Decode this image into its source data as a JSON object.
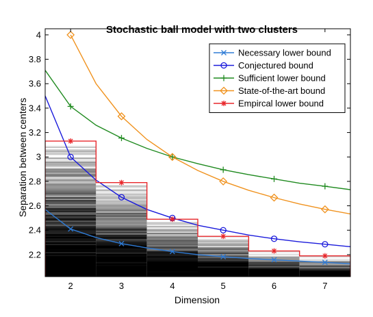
{
  "chart_data": {
    "type": "line",
    "title": "Stochastic ball model with two clusters",
    "xlabel": "Dimension",
    "ylabel": "Separation between centers",
    "xlim": [
      1.5,
      7.5
    ],
    "ylim": [
      2.02,
      4.05
    ],
    "xticks": [
      2,
      3,
      4,
      5,
      6,
      7
    ],
    "yticks": [
      2.2,
      2.4,
      2.6,
      2.8,
      3,
      3.2,
      3.4,
      3.6,
      3.8,
      4
    ],
    "ytick_labels": [
      "2.2",
      "2.4",
      "2.6",
      "2.8",
      "3",
      "3.2",
      "3.4",
      "3.6",
      "3.8",
      "4"
    ],
    "grid": false,
    "legend_position": "top-right",
    "series": [
      {
        "name": "Necessary lower bound",
        "color": "#2e7bd6",
        "marker": "x",
        "curve_x": [
          1.5,
          2,
          2.5,
          3,
          3.5,
          4,
          4.5,
          5,
          5.5,
          6,
          6.5,
          7,
          7.5
        ],
        "curve_y": [
          2.57,
          2.41,
          2.34,
          2.29,
          2.255,
          2.225,
          2.2,
          2.183,
          2.168,
          2.158,
          2.147,
          2.137,
          2.125
        ],
        "marker_x": [
          2,
          3,
          4,
          5,
          6,
          7
        ],
        "marker_y": [
          2.41,
          2.29,
          2.225,
          2.183,
          2.158,
          2.137
        ]
      },
      {
        "name": "Conjectured bound",
        "color": "#1a1adb",
        "marker": "o",
        "curve_x": [
          1.5,
          2,
          2.5,
          3,
          3.5,
          4,
          4.5,
          5,
          5.5,
          6,
          6.5,
          7,
          7.5
        ],
        "curve_y": [
          3.5,
          3.0,
          2.81,
          2.67,
          2.57,
          2.5,
          2.44,
          2.4,
          2.36,
          2.33,
          2.305,
          2.285,
          2.265
        ],
        "marker_x": [
          2,
          3,
          4,
          5,
          6,
          7
        ],
        "marker_y": [
          3.0,
          2.67,
          2.5,
          2.4,
          2.33,
          2.285
        ]
      },
      {
        "name": "Sufficient lower bound",
        "color": "#1f8a1f",
        "marker": "+",
        "curve_x": [
          1.5,
          2,
          2.5,
          3,
          3.5,
          4,
          4.5,
          5,
          5.5,
          6,
          6.5,
          7,
          7.5
        ],
        "curve_y": [
          3.71,
          3.414,
          3.26,
          3.155,
          3.07,
          3.0,
          2.945,
          2.895,
          2.855,
          2.82,
          2.785,
          2.76,
          2.732
        ],
        "marker_x": [
          2,
          3,
          4,
          5,
          6,
          7
        ],
        "marker_y": [
          3.414,
          3.155,
          3.0,
          2.895,
          2.82,
          2.76
        ]
      },
      {
        "name": "State-of-the-art bound",
        "color": "#f0921e",
        "marker": "diamond",
        "curve_x": [
          2,
          2.5,
          3,
          3.5,
          4,
          4.5,
          5,
          5.5,
          6,
          6.5,
          7,
          7.5
        ],
        "curve_y": [
          4.0,
          3.6,
          3.333,
          3.143,
          3.0,
          2.889,
          2.8,
          2.727,
          2.667,
          2.615,
          2.571,
          2.533
        ],
        "marker_x": [
          2,
          3,
          4,
          5,
          6,
          7
        ],
        "marker_y": [
          4.0,
          3.333,
          3.0,
          2.8,
          2.667,
          2.571
        ]
      },
      {
        "name": "Empircal lower bound",
        "color": "#e8262a",
        "marker": "*",
        "style": "step",
        "step_values": [
          3.13,
          2.79,
          2.49,
          2.35,
          2.23,
          2.19
        ],
        "marker_x": [
          2,
          3,
          4,
          5,
          6,
          7
        ],
        "marker_y": [
          3.13,
          2.79,
          2.49,
          2.35,
          2.23,
          2.19
        ]
      }
    ]
  }
}
